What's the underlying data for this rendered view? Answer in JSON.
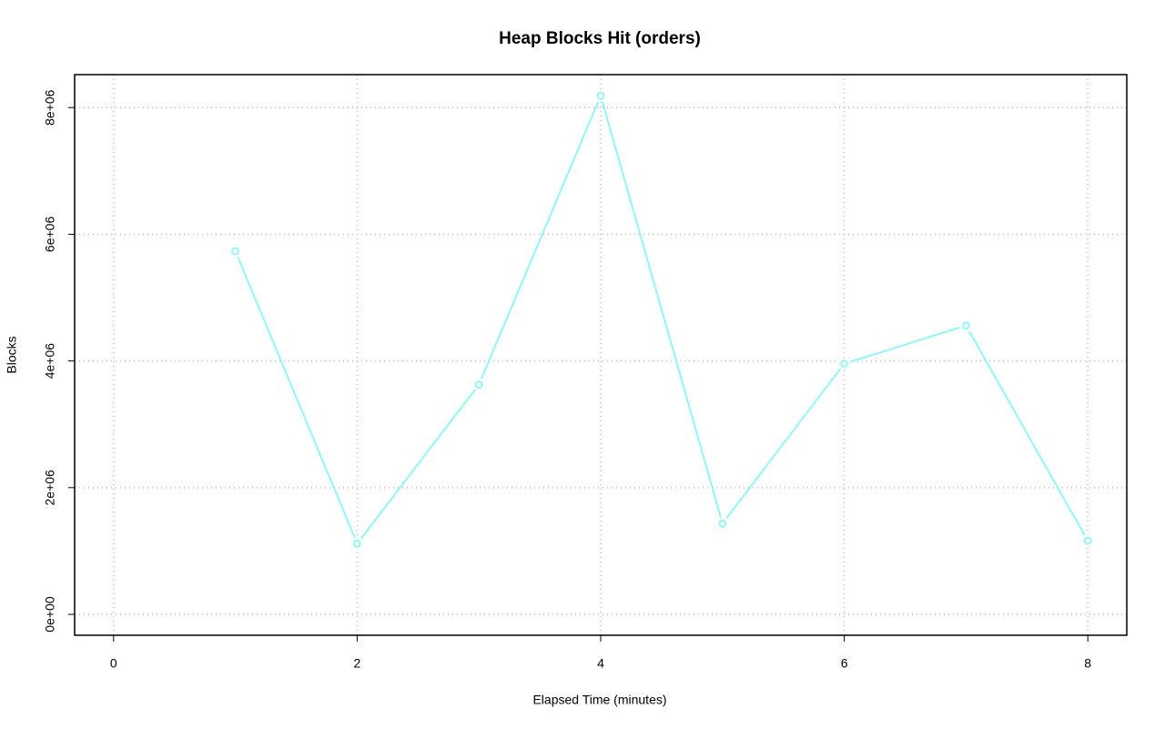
{
  "chart_data": {
    "type": "line",
    "title": "Heap Blocks Hit (orders)",
    "x_label": "Elapsed Time (minutes)",
    "y_label": "Blocks",
    "x": [
      1,
      2,
      3,
      4,
      5,
      6,
      7,
      8
    ],
    "series": [
      {
        "name": "orders",
        "color": "#66ffff",
        "values": [
          5735000,
          1118000,
          3627000,
          8186000,
          1434000,
          3957000,
          4559000,
          1161000
        ]
      }
    ],
    "xlim": [
      -0.32,
      8.32
    ],
    "xticks": [
      0,
      2,
      4,
      6,
      8
    ],
    "ylim": [
      -330000,
      8520000
    ],
    "yticks": [
      {
        "value": 0,
        "label": "0e+00"
      },
      {
        "value": 2000000,
        "label": "2e+06"
      },
      {
        "value": 4000000,
        "label": "4e+06"
      },
      {
        "value": 6000000,
        "label": "6e+06"
      },
      {
        "value": 8000000,
        "label": "8e+06"
      }
    ],
    "grid": true
  }
}
